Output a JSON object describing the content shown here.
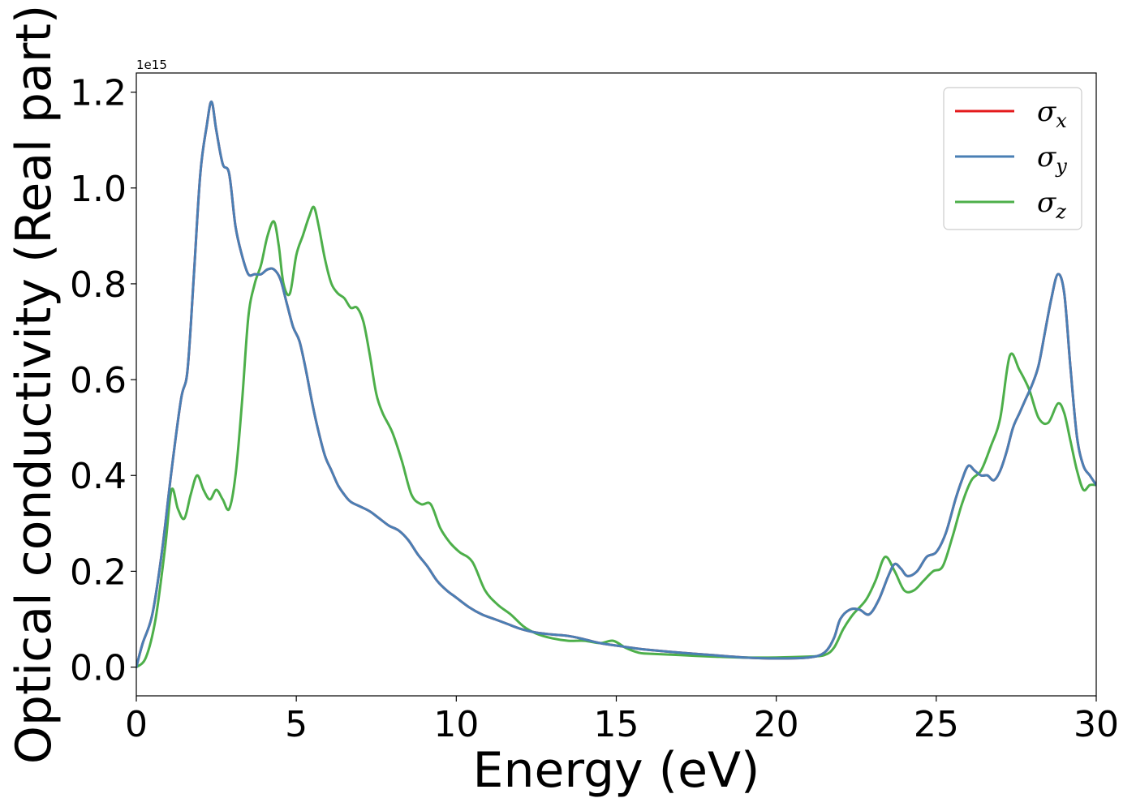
{
  "chart_data": {
    "type": "line",
    "xlabel": "Energy (eV)",
    "ylabel": "Optical conductivity (Real part)",
    "y_offset_label": "1e15",
    "xlim": [
      0,
      30
    ],
    "ylim": [
      -0.06,
      1.24
    ],
    "xticks": [
      0,
      5,
      10,
      15,
      20,
      25,
      30
    ],
    "xtick_labels": [
      "0",
      "5",
      "10",
      "15",
      "20",
      "25",
      "30"
    ],
    "yticks": [
      0.0,
      0.2,
      0.4,
      0.6,
      0.8,
      1.0,
      1.2
    ],
    "ytick_labels": [
      "0.0",
      "0.2",
      "0.4",
      "0.6",
      "0.8",
      "1.0",
      "1.2"
    ],
    "grid": false,
    "legend_position": "top-right",
    "series": [
      {
        "name": "σx",
        "symbol": "σ",
        "subscript": "x",
        "color": "#e41a1c",
        "x": [
          0,
          0.2,
          0.5,
          0.8,
          1.1,
          1.4,
          1.6,
          1.8,
          2.0,
          2.2,
          2.35,
          2.5,
          2.7,
          2.9,
          3.1,
          3.3,
          3.5,
          3.7,
          3.9,
          4.1,
          4.3,
          4.5,
          4.7,
          4.9,
          5.1,
          5.3,
          5.5,
          5.7,
          5.9,
          6.1,
          6.3,
          6.5,
          6.7,
          7.0,
          7.3,
          7.6,
          7.9,
          8.2,
          8.5,
          8.8,
          9.1,
          9.4,
          9.7,
          10.0,
          10.4,
          10.8,
          11.2,
          11.6,
          12.0,
          12.5,
          13.0,
          13.5,
          14.0,
          14.5,
          15.0,
          15.5,
          16.0,
          17.0,
          18.0,
          19.0,
          20.0,
          21.0,
          21.5,
          21.8,
          22.0,
          22.3,
          22.6,
          22.9,
          23.2,
          23.5,
          23.7,
          23.9,
          24.1,
          24.4,
          24.7,
          25.0,
          25.3,
          25.6,
          25.8,
          26.0,
          26.2,
          26.4,
          26.6,
          26.8,
          27.0,
          27.2,
          27.4,
          27.6,
          27.8,
          28.0,
          28.2,
          28.4,
          28.6,
          28.8,
          29.0,
          29.2,
          29.4,
          29.6,
          29.8,
          30.0
        ],
        "y": [
          0.0,
          0.05,
          0.11,
          0.24,
          0.41,
          0.56,
          0.62,
          0.82,
          1.03,
          1.13,
          1.18,
          1.12,
          1.05,
          1.03,
          0.92,
          0.86,
          0.82,
          0.82,
          0.82,
          0.83,
          0.83,
          0.81,
          0.76,
          0.71,
          0.68,
          0.62,
          0.55,
          0.49,
          0.44,
          0.41,
          0.38,
          0.36,
          0.345,
          0.335,
          0.325,
          0.31,
          0.295,
          0.285,
          0.265,
          0.235,
          0.21,
          0.18,
          0.16,
          0.145,
          0.125,
          0.11,
          0.1,
          0.09,
          0.08,
          0.072,
          0.068,
          0.065,
          0.058,
          0.05,
          0.045,
          0.04,
          0.036,
          0.03,
          0.025,
          0.02,
          0.018,
          0.02,
          0.03,
          0.06,
          0.1,
          0.12,
          0.12,
          0.11,
          0.14,
          0.19,
          0.215,
          0.205,
          0.19,
          0.2,
          0.23,
          0.24,
          0.28,
          0.35,
          0.39,
          0.42,
          0.41,
          0.4,
          0.4,
          0.39,
          0.41,
          0.45,
          0.5,
          0.53,
          0.56,
          0.59,
          0.63,
          0.7,
          0.77,
          0.82,
          0.78,
          0.62,
          0.48,
          0.42,
          0.4,
          0.38
        ]
      },
      {
        "name": "σy",
        "symbol": "σ",
        "subscript": "y",
        "color": "#4a7fb4",
        "x": [
          0,
          0.2,
          0.5,
          0.8,
          1.1,
          1.4,
          1.6,
          1.8,
          2.0,
          2.2,
          2.35,
          2.5,
          2.7,
          2.9,
          3.1,
          3.3,
          3.5,
          3.7,
          3.9,
          4.1,
          4.3,
          4.5,
          4.7,
          4.9,
          5.1,
          5.3,
          5.5,
          5.7,
          5.9,
          6.1,
          6.3,
          6.5,
          6.7,
          7.0,
          7.3,
          7.6,
          7.9,
          8.2,
          8.5,
          8.8,
          9.1,
          9.4,
          9.7,
          10.0,
          10.4,
          10.8,
          11.2,
          11.6,
          12.0,
          12.5,
          13.0,
          13.5,
          14.0,
          14.5,
          15.0,
          15.5,
          16.0,
          17.0,
          18.0,
          19.0,
          20.0,
          21.0,
          21.5,
          21.8,
          22.0,
          22.3,
          22.6,
          22.9,
          23.2,
          23.5,
          23.7,
          23.9,
          24.1,
          24.4,
          24.7,
          25.0,
          25.3,
          25.6,
          25.8,
          26.0,
          26.2,
          26.4,
          26.6,
          26.8,
          27.0,
          27.2,
          27.4,
          27.6,
          27.8,
          28.0,
          28.2,
          28.4,
          28.6,
          28.8,
          29.0,
          29.2,
          29.4,
          29.6,
          29.8,
          30.0
        ],
        "y": [
          0.0,
          0.05,
          0.11,
          0.24,
          0.41,
          0.56,
          0.62,
          0.82,
          1.03,
          1.13,
          1.18,
          1.12,
          1.05,
          1.03,
          0.92,
          0.86,
          0.82,
          0.82,
          0.82,
          0.83,
          0.83,
          0.81,
          0.76,
          0.71,
          0.68,
          0.62,
          0.55,
          0.49,
          0.44,
          0.41,
          0.38,
          0.36,
          0.345,
          0.335,
          0.325,
          0.31,
          0.295,
          0.285,
          0.265,
          0.235,
          0.21,
          0.18,
          0.16,
          0.145,
          0.125,
          0.11,
          0.1,
          0.09,
          0.08,
          0.072,
          0.068,
          0.065,
          0.058,
          0.05,
          0.045,
          0.04,
          0.036,
          0.03,
          0.025,
          0.02,
          0.018,
          0.02,
          0.03,
          0.06,
          0.1,
          0.12,
          0.12,
          0.11,
          0.14,
          0.19,
          0.215,
          0.205,
          0.19,
          0.2,
          0.23,
          0.24,
          0.28,
          0.35,
          0.39,
          0.42,
          0.41,
          0.4,
          0.4,
          0.39,
          0.41,
          0.45,
          0.5,
          0.53,
          0.56,
          0.59,
          0.63,
          0.7,
          0.77,
          0.82,
          0.78,
          0.62,
          0.48,
          0.42,
          0.4,
          0.38
        ]
      },
      {
        "name": "σz",
        "symbol": "σ",
        "subscript": "z",
        "color": "#4daf4a",
        "x": [
          0,
          0.3,
          0.6,
          0.9,
          1.1,
          1.3,
          1.5,
          1.7,
          1.9,
          2.1,
          2.3,
          2.5,
          2.7,
          2.9,
          3.1,
          3.3,
          3.5,
          3.7,
          3.9,
          4.1,
          4.3,
          4.45,
          4.6,
          4.8,
          5.0,
          5.2,
          5.4,
          5.55,
          5.7,
          5.9,
          6.1,
          6.3,
          6.5,
          6.7,
          6.9,
          7.1,
          7.3,
          7.5,
          7.7,
          8.0,
          8.3,
          8.6,
          8.9,
          9.2,
          9.5,
          9.8,
          10.1,
          10.5,
          10.9,
          11.3,
          11.7,
          12.1,
          12.5,
          13.0,
          13.5,
          14.0,
          14.5,
          14.9,
          15.3,
          15.7,
          16.0,
          17.0,
          18.0,
          19.0,
          20.0,
          21.0,
          21.5,
          21.8,
          22.1,
          22.4,
          22.8,
          23.1,
          23.4,
          23.7,
          24.0,
          24.3,
          24.6,
          24.9,
          25.2,
          25.5,
          25.8,
          26.1,
          26.4,
          26.7,
          27.0,
          27.3,
          27.6,
          27.9,
          28.2,
          28.5,
          28.8,
          29.0,
          29.2,
          29.4,
          29.6,
          29.8,
          30.0
        ],
        "y": [
          0.0,
          0.02,
          0.1,
          0.25,
          0.37,
          0.33,
          0.31,
          0.36,
          0.4,
          0.37,
          0.35,
          0.37,
          0.35,
          0.33,
          0.4,
          0.55,
          0.73,
          0.8,
          0.84,
          0.9,
          0.93,
          0.88,
          0.8,
          0.78,
          0.86,
          0.9,
          0.94,
          0.96,
          0.92,
          0.85,
          0.8,
          0.78,
          0.77,
          0.75,
          0.75,
          0.72,
          0.65,
          0.57,
          0.53,
          0.49,
          0.43,
          0.36,
          0.34,
          0.34,
          0.29,
          0.26,
          0.24,
          0.22,
          0.16,
          0.13,
          0.11,
          0.085,
          0.07,
          0.06,
          0.055,
          0.055,
          0.05,
          0.055,
          0.04,
          0.03,
          0.028,
          0.025,
          0.022,
          0.02,
          0.02,
          0.022,
          0.025,
          0.04,
          0.08,
          0.11,
          0.14,
          0.18,
          0.23,
          0.2,
          0.16,
          0.16,
          0.18,
          0.2,
          0.21,
          0.27,
          0.34,
          0.39,
          0.41,
          0.46,
          0.52,
          0.65,
          0.62,
          0.58,
          0.52,
          0.51,
          0.55,
          0.53,
          0.47,
          0.41,
          0.37,
          0.38,
          0.38
        ]
      }
    ]
  }
}
